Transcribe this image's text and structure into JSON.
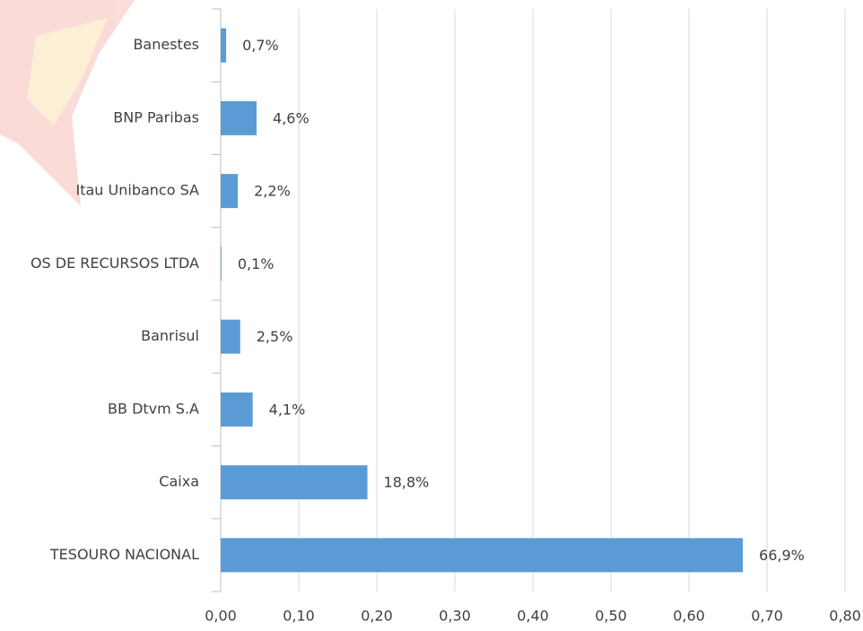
{
  "chart_data": {
    "type": "bar",
    "orientation": "horizontal",
    "categories": [
      "Banestes",
      "BNP Paribas",
      "Itau Unibanco SA",
      "OS DE RECURSOS LTDA",
      "Banrisul",
      "BB Dtvm S.A",
      "Caixa",
      "TESOURO NACIONAL"
    ],
    "values": [
      0.007,
      0.046,
      0.022,
      0.001,
      0.025,
      0.041,
      0.188,
      0.669
    ],
    "value_labels": [
      "0,7%",
      "4,6%",
      "2,2%",
      "0,1%",
      "2,5%",
      "4,1%",
      "18,8%",
      "66,9%"
    ],
    "color": "#5b9bd5",
    "xlim": [
      0,
      0.8
    ],
    "xticks": [
      {
        "value": 0,
        "label": "0,00"
      },
      {
        "value": 0.1,
        "label": "0,10"
      },
      {
        "value": 0.2,
        "label": "0,20"
      },
      {
        "value": 0.3,
        "label": "0,30"
      },
      {
        "value": 0.4,
        "label": "0,40"
      },
      {
        "value": 0.5,
        "label": "0,50"
      },
      {
        "value": 0.6,
        "label": "0,60"
      },
      {
        "value": 0.7,
        "label": "0,70"
      },
      {
        "value": 0.8,
        "label": "0,80"
      }
    ],
    "grid": true
  }
}
